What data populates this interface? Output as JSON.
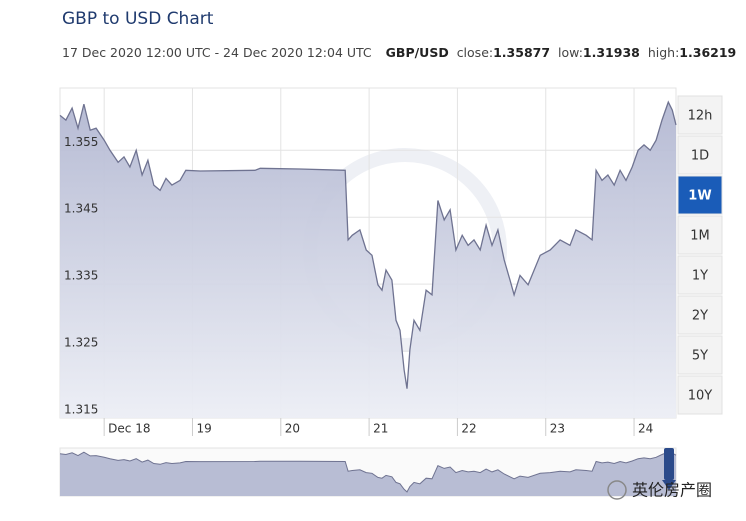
{
  "chart_data": {
    "type": "area",
    "title": "GBP to USD Chart",
    "subtitle": {
      "period": "17 Dec 2020 12:00 UTC - 24 Dec 2020 12:04 UTC",
      "pair": "GBP/USD",
      "close_label": "close:",
      "close": 1.35877,
      "low_label": "low:",
      "low": 1.31938,
      "high_label": "high:",
      "high": 1.36219
    },
    "x": [
      0,
      1.6,
      3.3,
      4.9,
      6.5,
      8.2,
      9.8,
      12,
      13.6,
      15.8,
      17.4,
      19,
      20.7,
      22.3,
      23.9,
      25.5,
      27.2,
      28.8,
      30.4,
      32.6,
      34.2,
      38.1,
      53,
      54.4,
      65.2,
      77.5,
      78.3,
      79.4,
      81.5,
      83.2,
      84.8,
      86.4,
      87.5,
      88.6,
      90.2,
      91.3,
      92.4,
      93.5,
      94.3,
      95.1,
      96.2,
      97.8,
      99.5,
      101.1,
      102.7,
      104.4,
      106,
      107.6,
      109.3,
      110.9,
      112.5,
      114.2,
      115.8,
      117.4,
      119,
      120.7,
      122.3,
      123.4,
      125,
      127.2,
      130.5,
      133.2,
      135.9,
      138.6,
      140.2,
      143,
      144.6,
      145.7,
      147.3,
      148.9,
      150.6,
      152.2,
      153.8,
      155.5,
      157.1,
      158.7,
      160.4,
      162,
      163.6,
      165.3,
      166.4,
      167.4
    ],
    "series": [
      {
        "name": "GBP/USD",
        "color": "#6f7391",
        "values": [
          1.3602,
          1.3595,
          1.3613,
          1.3583,
          1.3619,
          1.358,
          1.3583,
          1.3565,
          1.355,
          1.3532,
          1.354,
          1.3525,
          1.355,
          1.3513,
          1.3535,
          1.3498,
          1.349,
          1.3508,
          1.3498,
          1.3505,
          1.352,
          1.3519,
          1.352,
          1.3523,
          1.3522,
          1.352,
          1.3416,
          1.3423,
          1.3431,
          1.3401,
          1.3393,
          1.3349,
          1.3341,
          1.3371,
          1.3356,
          1.3296,
          1.3281,
          1.3222,
          1.31938,
          1.3252,
          1.3296,
          1.3281,
          1.3341,
          1.3334,
          1.3475,
          1.3446,
          1.3461,
          1.3401,
          1.3423,
          1.3408,
          1.3416,
          1.3401,
          1.3438,
          1.3408,
          1.3431,
          1.3386,
          1.3356,
          1.3334,
          1.3363,
          1.3349,
          1.3393,
          1.3401,
          1.3416,
          1.3408,
          1.3431,
          1.3423,
          1.3416,
          1.352,
          1.3505,
          1.3513,
          1.3498,
          1.352,
          1.3505,
          1.3525,
          1.355,
          1.3558,
          1.355,
          1.3565,
          1.3595,
          1.36219,
          1.361,
          1.35877
        ]
      }
    ],
    "xlim": [
      0,
      167.4
    ],
    "xticks": [
      {
        "value": 12,
        "label": "Dec 18"
      },
      {
        "value": 36,
        "label": "19"
      },
      {
        "value": 60,
        "label": "20"
      },
      {
        "value": 84,
        "label": "21"
      },
      {
        "value": 108,
        "label": "22"
      },
      {
        "value": 132,
        "label": "23"
      },
      {
        "value": 156,
        "label": "24"
      }
    ],
    "ylim": [
      1.315,
      1.3643
    ],
    "yticks": [
      1.315,
      1.325,
      1.335,
      1.345,
      1.355
    ],
    "grid": true,
    "range_buttons": [
      "12h",
      "1D",
      "1W",
      "1M",
      "1Y",
      "2Y",
      "5Y",
      "10Y"
    ],
    "active_button": 2,
    "watermark": "英伦房产圈"
  }
}
